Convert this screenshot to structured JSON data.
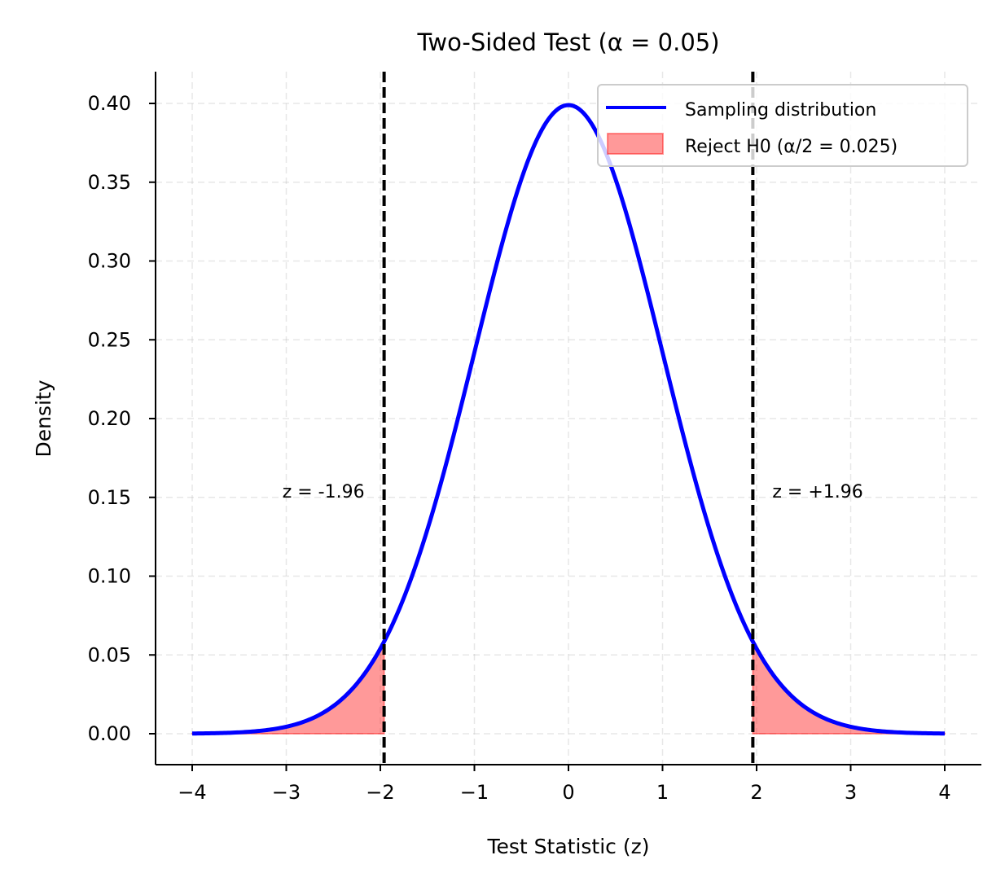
{
  "chart_data": {
    "type": "line",
    "title": "Two-Sided Test (α = 0.05)",
    "xlabel": "Test Statistic (z)",
    "ylabel": "Density",
    "xlim": [
      -4.4,
      4.4
    ],
    "ylim": [
      -0.02,
      0.42
    ],
    "grid": true,
    "legend_placement": "top-right",
    "xticks": [
      -4,
      -3,
      -2,
      -1,
      0,
      1,
      2,
      3,
      4
    ],
    "xtick_labels": [
      "−4",
      "−3",
      "−2",
      "−1",
      "0",
      "1",
      "2",
      "3",
      "4"
    ],
    "yticks": [
      0,
      0.05,
      0.1,
      0.15,
      0.2,
      0.25,
      0.3,
      0.35,
      0.4
    ],
    "ytick_labels": [
      "0.00",
      "0.05",
      "0.10",
      "0.15",
      "0.20",
      "0.25",
      "0.30",
      "0.35",
      "0.40"
    ],
    "series": [
      {
        "name": "Sampling distribution",
        "kind": "line",
        "function": "standard normal pdf",
        "x_range": [
          -4,
          4
        ],
        "color": "#0000ff"
      },
      {
        "name": "Reject H0 (α/2 = 0.025)",
        "kind": "fill",
        "regions": [
          [
            -4,
            -1.96
          ],
          [
            1.96,
            4
          ]
        ],
        "color": "#ff0000",
        "alpha": 0.4
      }
    ],
    "critical_values": [
      -1.96,
      1.96
    ],
    "annotations": [
      {
        "text": "z = -1.96",
        "x": -1.96,
        "y": 0.15
      },
      {
        "text": "z = +1.96",
        "x": 1.96,
        "y": 0.15
      }
    ]
  }
}
